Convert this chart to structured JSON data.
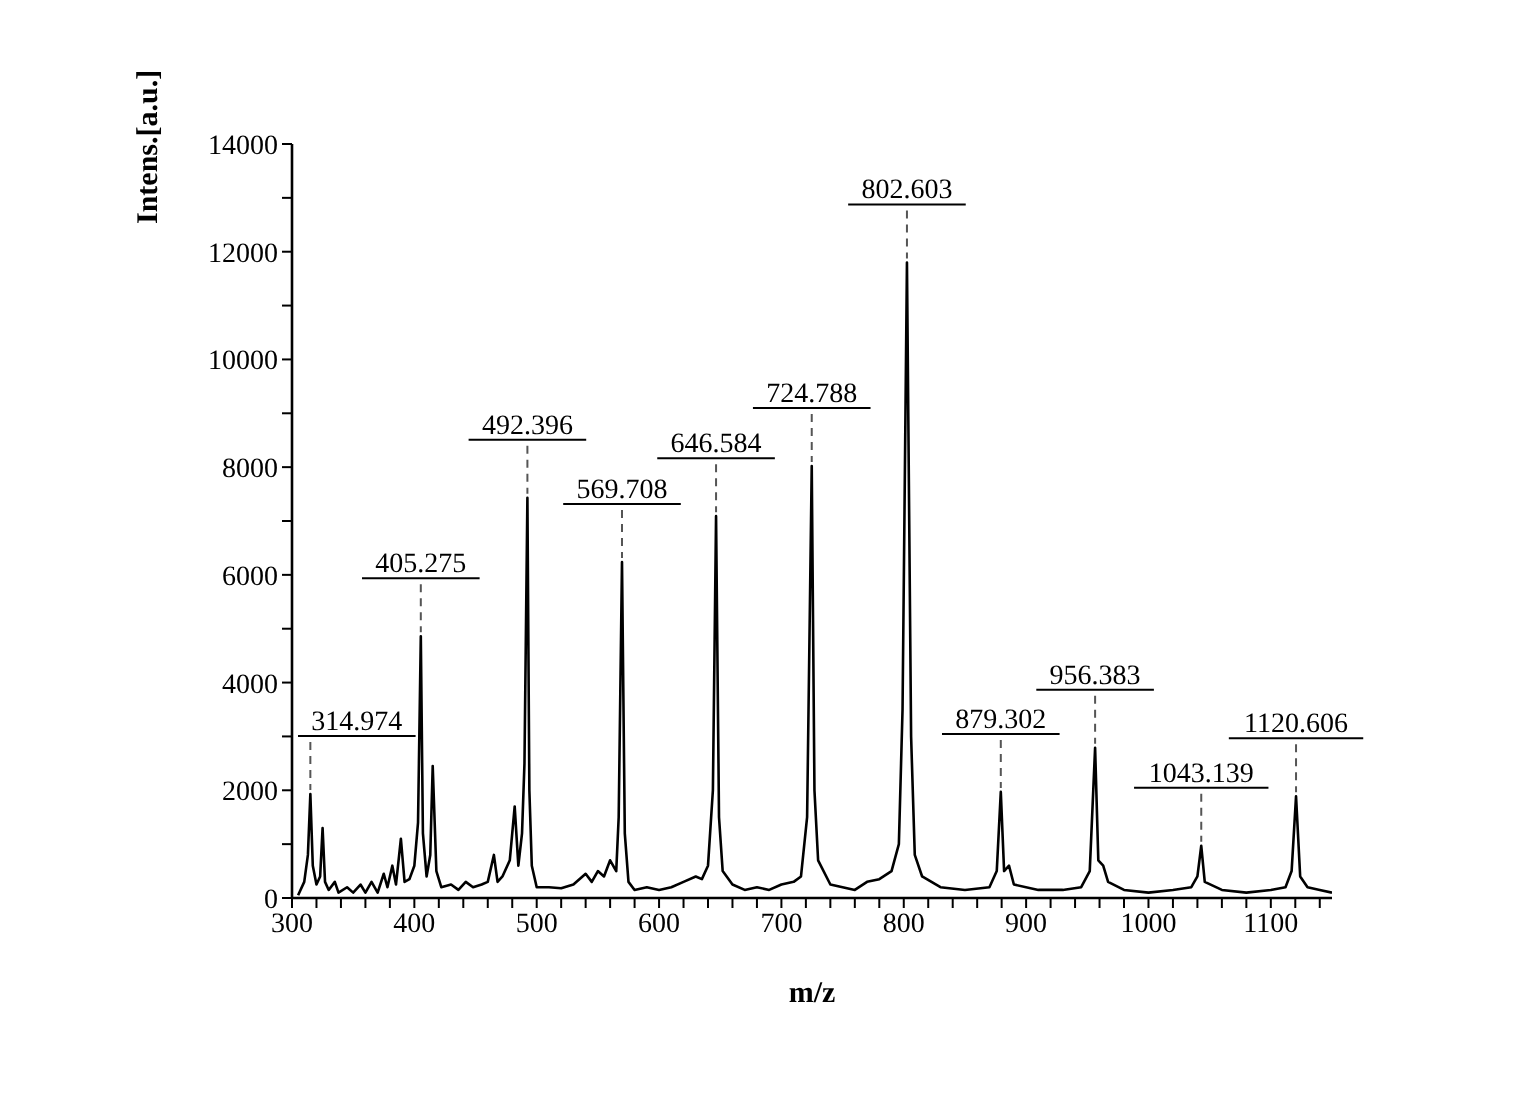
{
  "chart_data": {
    "type": "line",
    "xlabel": "m/z",
    "ylabel": "Intens.[a.u.]",
    "series": [
      {
        "color": "#000000",
        "x": [
          305,
          310,
          313,
          315,
          317,
          320,
          323,
          325,
          327,
          330,
          335,
          338,
          345,
          350,
          356,
          360,
          365,
          370,
          375,
          378,
          382,
          385,
          389,
          392,
          396,
          400,
          403,
          405.275,
          407,
          410,
          413,
          415,
          418,
          422,
          430,
          436,
          442,
          448,
          455,
          460,
          465,
          468,
          472,
          478,
          482,
          485,
          488,
          490,
          492.396,
          494,
          496,
          500,
          510,
          520,
          530,
          540,
          545,
          550,
          555,
          560,
          565,
          567,
          569.708,
          572,
          575,
          580,
          590,
          600,
          610,
          620,
          630,
          635,
          640,
          644,
          646.584,
          649,
          652,
          660,
          670,
          680,
          690,
          700,
          710,
          716,
          721,
          724.788,
          727,
          730,
          740,
          750,
          760,
          770,
          780,
          790,
          796,
          799,
          802.603,
          806,
          809,
          815,
          830,
          850,
          870,
          876,
          879.302,
          882,
          886,
          890,
          910,
          930,
          945,
          952,
          956.383,
          959,
          963,
          967,
          980,
          1000,
          1020,
          1035,
          1040,
          1043.139,
          1046,
          1060,
          1080,
          1100,
          1112,
          1117,
          1120.606,
          1124,
          1130,
          1140,
          1150
        ],
        "values": [
          50,
          300,
          800,
          1930,
          600,
          250,
          400,
          1300,
          300,
          150,
          300,
          100,
          200,
          100,
          250,
          100,
          300,
          100,
          450,
          200,
          600,
          250,
          1100,
          300,
          350,
          600,
          1400,
          4860,
          1200,
          400,
          800,
          2450,
          500,
          200,
          250,
          150,
          300,
          200,
          250,
          300,
          800,
          300,
          400,
          700,
          1700,
          600,
          1200,
          2500,
          7430,
          2000,
          600,
          200,
          200,
          180,
          250,
          450,
          300,
          500,
          400,
          700,
          500,
          1500,
          6240,
          1200,
          300,
          150,
          200,
          150,
          200,
          300,
          400,
          350,
          600,
          2000,
          7090,
          1500,
          500,
          250,
          150,
          200,
          150,
          250,
          300,
          400,
          1500,
          8020,
          2000,
          700,
          250,
          200,
          150,
          300,
          350,
          500,
          1000,
          3500,
          11800,
          3000,
          800,
          400,
          200,
          150,
          200,
          500,
          1970,
          500,
          600,
          250,
          150,
          150,
          200,
          500,
          2790,
          700,
          600,
          300,
          150,
          100,
          150,
          200,
          400,
          970,
          300,
          150,
          100,
          150,
          200,
          500,
          1890,
          400,
          200,
          150,
          100
        ]
      }
    ],
    "xlim": [
      300,
      1150
    ],
    "xticks": [
      300,
      {
        "value": 320,
        "label": null
      },
      {
        "value": 340,
        "label": null
      },
      {
        "value": 360,
        "label": null
      },
      {
        "value": 380,
        "label": null
      },
      400,
      {
        "value": 420,
        "label": null
      },
      {
        "value": 440,
        "label": null
      },
      {
        "value": 460,
        "label": null
      },
      {
        "value": 480,
        "label": null
      },
      500,
      {
        "value": 520,
        "label": null
      },
      {
        "value": 540,
        "label": null
      },
      {
        "value": 560,
        "label": null
      },
      {
        "value": 580,
        "label": null
      },
      600,
      {
        "value": 620,
        "label": null
      },
      {
        "value": 640,
        "label": null
      },
      {
        "value": 660,
        "label": null
      },
      {
        "value": 680,
        "label": null
      },
      700,
      {
        "value": 720,
        "label": null
      },
      {
        "value": 740,
        "label": null
      },
      {
        "value": 760,
        "label": null
      },
      {
        "value": 780,
        "label": null
      },
      800,
      {
        "value": 820,
        "label": null
      },
      {
        "value": 840,
        "label": null
      },
      {
        "value": 860,
        "label": null
      },
      {
        "value": 880,
        "label": null
      },
      900,
      {
        "value": 920,
        "label": null
      },
      {
        "value": 940,
        "label": null
      },
      {
        "value": 960,
        "label": null
      },
      {
        "value": 980,
        "label": null
      },
      1000,
      {
        "value": 1020,
        "label": null
      },
      {
        "value": 1040,
        "label": null
      },
      {
        "value": 1060,
        "label": null
      },
      {
        "value": 1080,
        "label": null
      },
      1100,
      {
        "value": 1120,
        "label": null
      },
      {
        "value": 1140,
        "label": null
      }
    ],
    "ylim": [
      0,
      14000
    ],
    "yticks": [
      0,
      {
        "value": 1000,
        "label": null
      },
      2000,
      {
        "value": 3000,
        "label": null
      },
      4000,
      {
        "value": 5000,
        "label": null
      },
      6000,
      {
        "value": 7000,
        "label": null
      },
      8000,
      {
        "value": 9000,
        "label": null
      },
      10000,
      {
        "value": 11000,
        "label": null
      },
      12000,
      {
        "value": 13000,
        "label": null
      },
      14000
    ],
    "grid": false,
    "marker": "none",
    "line_style": "solid",
    "annotations": [
      {
        "text": "314.974",
        "x": 315,
        "y": 1930
      },
      {
        "text": "405.275",
        "x": 405.275,
        "y": 4860
      },
      {
        "text": "492.396",
        "x": 492.396,
        "y": 7430
      },
      {
        "text": "569.708",
        "x": 569.708,
        "y": 6240
      },
      {
        "text": "646.584",
        "x": 646.584,
        "y": 7090
      },
      {
        "text": "724.788",
        "x": 724.788,
        "y": 8020
      },
      {
        "text": "802.603",
        "x": 802.603,
        "y": 11800
      },
      {
        "text": "879.302",
        "x": 879.302,
        "y": 1970
      },
      {
        "text": "956.383",
        "x": 956.383,
        "y": 2790
      },
      {
        "text": "1043.139",
        "x": 1043.139,
        "y": 970
      },
      {
        "text": "1120.606",
        "x": 1120.606,
        "y": 1890
      }
    ]
  }
}
